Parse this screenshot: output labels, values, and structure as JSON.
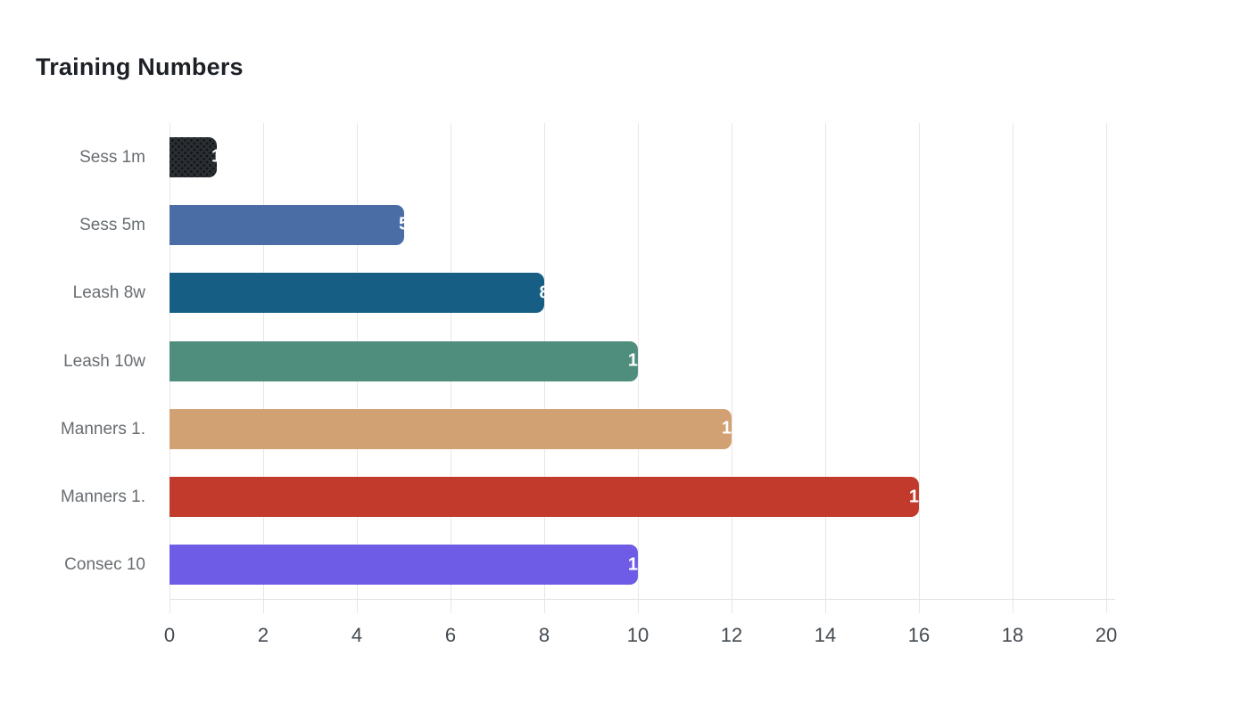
{
  "title": "Training Numbers",
  "chart_data": {
    "type": "bar",
    "orientation": "horizontal",
    "title": "Training Numbers",
    "categories": [
      "Sess 1m",
      "Sess 5m",
      "Leash 8w",
      "Leash 10w",
      "Manners 1.",
      "Manners 1.",
      "Consec 10"
    ],
    "values": [
      1,
      5,
      8,
      10,
      12,
      16,
      10
    ],
    "value_labels": [
      "1",
      "5",
      "8",
      "10",
      "12",
      "16",
      "10"
    ],
    "bar_colors": [
      "#2b2f34",
      "#4a6da6",
      "#175e84",
      "#4f8d7d",
      "#d2a173",
      "#c13a2b",
      "#6e5be6"
    ],
    "bar_patterns": [
      "dots",
      "solid",
      "solid",
      "solid",
      "solid",
      "solid",
      "solid"
    ],
    "xlabel": "",
    "ylabel": "",
    "xlim": [
      0,
      20
    ],
    "x_ticks": [
      "0",
      "2",
      "4",
      "6",
      "8",
      "10",
      "12",
      "14",
      "16",
      "18",
      "20"
    ],
    "grid": "vertical-gridlines",
    "legend": "none",
    "value_label_color": "#ffffff"
  },
  "colors": {
    "background": "#ffffff",
    "title_text": "#1d2126",
    "category_label_text": "#686d71",
    "tick_label_text": "#434a50",
    "gridline": "#e7e7e7"
  }
}
